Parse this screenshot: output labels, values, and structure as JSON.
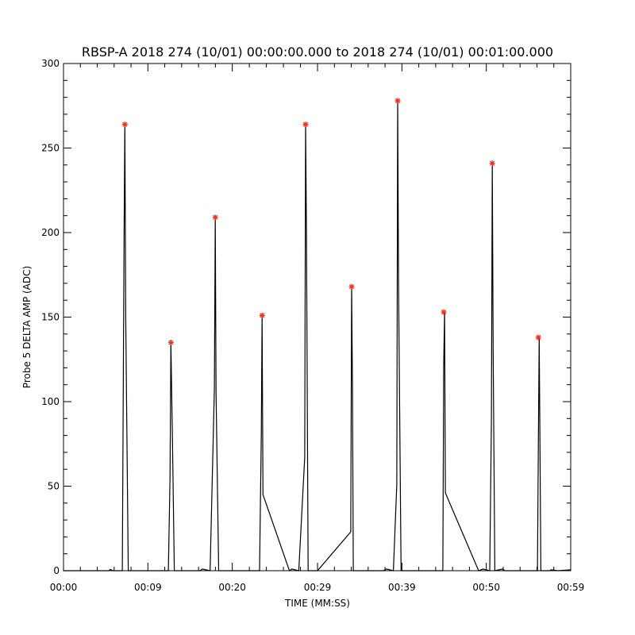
{
  "chart_data": {
    "type": "line",
    "title": "RBSP-A 2018 274 (10/01) 00:00:00.000 to 2018 274 (10/01) 00:01:00.000",
    "xlabel": "TIME (MM:SS)",
    "ylabel": "Probe 5 DELTA AMP (ADC)",
    "xlim": [
      0,
      59.5
    ],
    "ylim": [
      0,
      300
    ],
    "x_tick_values": [
      0,
      9.9,
      19.8,
      29.8,
      39.7,
      49.6,
      59.5
    ],
    "x_tick_labels": [
      "00:00",
      "00:09",
      "00:20",
      "00:29",
      "00:39",
      "00:50",
      "00:59"
    ],
    "y_tick_values": [
      0,
      50,
      100,
      150,
      200,
      250,
      300
    ],
    "y_tick_labels": [
      "0",
      "50",
      "100",
      "150",
      "200",
      "250",
      "300"
    ],
    "grid": false,
    "series": [
      {
        "color": "#000000",
        "x": [
          0,
          5.3,
          5.5,
          5.8,
          6.1,
          6.9,
          7.1,
          7.2,
          7.3,
          7.6,
          9.8,
          12.3,
          12.5,
          12.6,
          12.8,
          13.0,
          16.0,
          16.3,
          17.2,
          17.7,
          17.8,
          17.9,
          18.2,
          19.5,
          23.0,
          23.2,
          23.3,
          23.4,
          26.5,
          26.8,
          27.6,
          28.3,
          28.4,
          28.5,
          28.7,
          29.8,
          33.7,
          33.8,
          33.9,
          34.0,
          37.5,
          37.9,
          38.7,
          39.1,
          39.2,
          39.3,
          39.6,
          44.5,
          44.6,
          44.7,
          44.8,
          48.7,
          49.2,
          50.0,
          50.2,
          50.3,
          50.4,
          50.6,
          51.5,
          51.8,
          55.6,
          55.7,
          55.8,
          56.0,
          57.0,
          57.2,
          58.0,
          59.5
        ],
        "y": [
          0,
          0,
          0.8,
          0,
          0,
          0,
          197,
          264,
          150,
          0,
          0,
          0,
          55,
          135,
          70,
          0,
          0,
          1,
          0,
          108,
          209,
          105,
          0,
          0,
          0,
          81,
          151,
          45,
          0,
          1,
          0,
          67,
          264,
          199,
          0,
          0,
          23,
          168,
          106,
          0,
          0,
          1,
          0,
          51,
          278,
          170,
          0,
          0,
          122,
          153,
          46,
          0,
          1,
          0,
          89,
          241,
          130,
          0,
          1,
          0,
          0,
          72,
          138,
          0,
          0,
          0.5,
          0,
          0.5
        ]
      },
      {
        "color": "#ff2a1a",
        "marker": "asterisk",
        "x": [
          7.2,
          12.6,
          17.8,
          23.3,
          28.4,
          33.8,
          39.2,
          44.6,
          50.3,
          55.7
        ],
        "y": [
          264,
          135,
          209,
          151,
          264,
          168,
          278,
          153,
          241,
          138
        ]
      }
    ]
  }
}
